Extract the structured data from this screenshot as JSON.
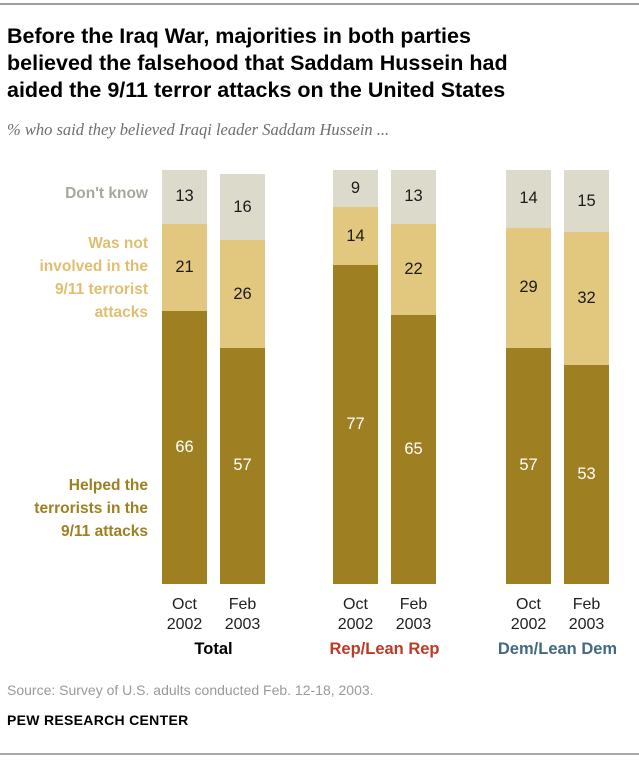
{
  "header": {
    "title": "Before the Iraq War, majorities in both parties\nbelieved the falsehood that Saddam Hussein had\naided the 9/11 terror attacks on the United States",
    "subtitle": "% who said they believed Iraqi leader Saddam Hussein ..."
  },
  "chart_data": {
    "type": "bar",
    "stacked": true,
    "unit": "%",
    "ylim": [
      0,
      100
    ],
    "grid": false,
    "legend_position": "left",
    "segment_order_top_to_bottom": [
      "dont_know",
      "not_involved",
      "helped"
    ],
    "segments": [
      {
        "key": "dont_know",
        "label": "Don't know",
        "color": "#dcdacb",
        "label_color": "#a9a69b",
        "value_color": "#1a1a1a"
      },
      {
        "key": "not_involved",
        "label": "Was not\ninvolved in the\n9/11 terrorist\nattacks",
        "color": "#e2c87e",
        "label_color": "#dfbf6f",
        "value_color": "#1a1a1a"
      },
      {
        "key": "helped",
        "label": "Helped the\nterrorists in the\n9/11 attacks",
        "color": "#9e8022",
        "label_color": "#9e8022",
        "value_color": "#ffffff"
      }
    ],
    "groups": [
      {
        "label": "Total",
        "label_color": "#000000",
        "bars": [
          {
            "x": "Oct\n2002",
            "values": {
              "helped": 66,
              "not_involved": 21,
              "dont_know": 13
            }
          },
          {
            "x": "Feb\n2003",
            "values": {
              "helped": 57,
              "not_involved": 26,
              "dont_know": 16
            }
          }
        ]
      },
      {
        "label": "Rep/Lean Rep",
        "label_color": "#bf3927",
        "bars": [
          {
            "x": "Oct\n2002",
            "values": {
              "helped": 77,
              "not_involved": 14,
              "dont_know": 9
            }
          },
          {
            "x": "Feb\n2003",
            "values": {
              "helped": 65,
              "not_involved": 22,
              "dont_know": 13
            }
          }
        ]
      },
      {
        "label": "Dem/Lean Dem",
        "label_color": "#436983",
        "bars": [
          {
            "x": "Oct\n2002",
            "values": {
              "helped": 57,
              "not_involved": 29,
              "dont_know": 14
            }
          },
          {
            "x": "Feb\n2003",
            "values": {
              "helped": 53,
              "not_involved": 32,
              "dont_know": 15
            }
          }
        ]
      }
    ]
  },
  "footer": {
    "source": "Source: Survey of U.S. adults conducted Feb. 12-18, 2003.",
    "org": "PEW RESEARCH CENTER"
  }
}
